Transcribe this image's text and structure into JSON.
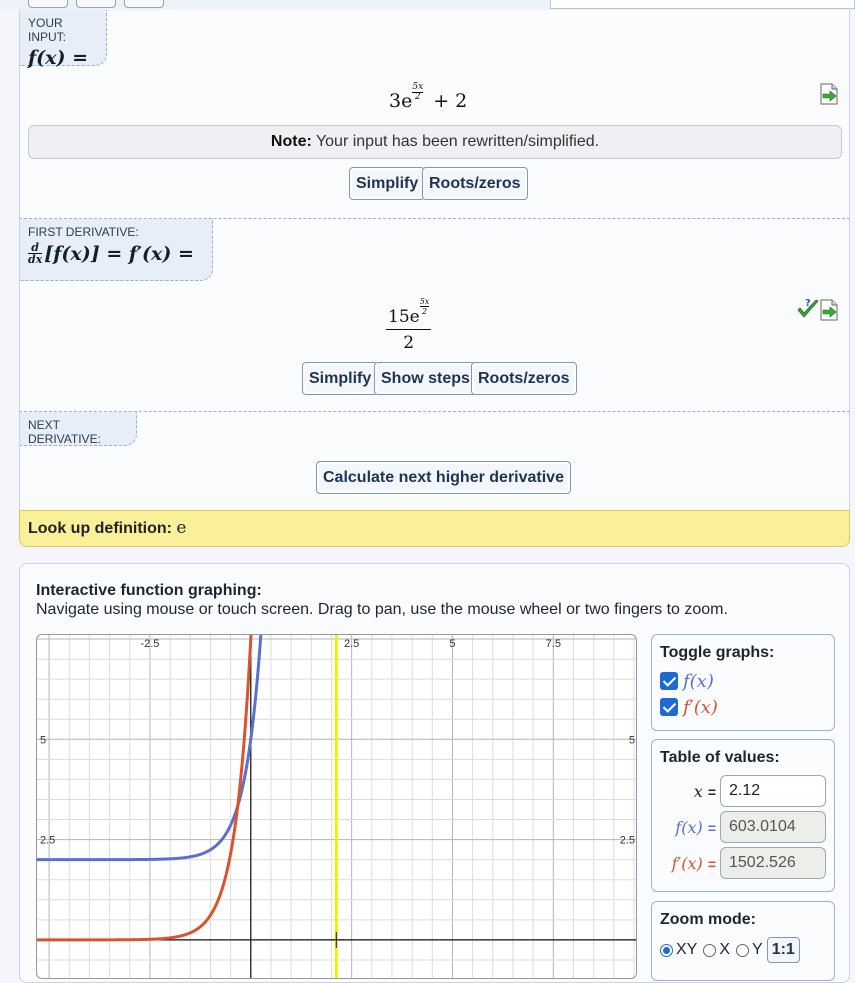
{
  "input_section": {
    "tag_label": "YOUR INPUT:",
    "tag_math": "f(x) =",
    "expr_coef": "3e",
    "expr_exp_num": "5x",
    "expr_exp_den": "2",
    "expr_tail": "+ 2",
    "note_bold": "Note:",
    "note_text": "Your input has been rewritten/simplified.",
    "btn_simplify": "Simplify",
    "btn_roots": "Roots/zeros"
  },
  "first_derivative": {
    "tag_label": "FIRST DERIVATIVE:",
    "tag_d": "d",
    "tag_dx": "dx",
    "tag_rest": "[f(x)] = f′(x) =",
    "expr_num_coef": "15e",
    "expr_exp_num": "5x",
    "expr_exp_den": "2",
    "expr_den": "2",
    "btn_simplify": "Simplify",
    "btn_steps": "Show steps",
    "btn_roots": "Roots/zeros"
  },
  "next_derivative": {
    "tag_label": "NEXT DERIVATIVE:",
    "btn_next": "Calculate next higher derivative"
  },
  "lookup": {
    "label": "Look up definition:",
    "symbol": "e"
  },
  "graphing": {
    "title": "Interactive function graphing:",
    "subtitle": "Navigate using mouse or touch screen. Drag to pan, use the mouse wheel or two fingers to zoom.",
    "toggle_title": "Toggle graphs:",
    "toggle_f": "f(x)",
    "toggle_fp": "f′(x)",
    "table_title": "Table of values:",
    "x_label": "x",
    "x_value": "2.12",
    "f_label": "f(x)",
    "f_value": "603.0104",
    "fp_label": "f′(x)",
    "fp_value": "1502.526",
    "eq": "=",
    "zoom_title": "Zoom mode:",
    "zoom_xy": "XY",
    "zoom_x": "X",
    "zoom_y": "Y",
    "zoom_ratio": "1:1",
    "colors": {
      "f": "#5a6fd0",
      "fp": "#d9542e",
      "cursor": "#f2f200"
    }
  },
  "chart_data": {
    "type": "line",
    "x_ticks": [
      "-2.5",
      "2.5",
      "5",
      "7.5"
    ],
    "y_ticks": [
      "5",
      "2.5"
    ],
    "xlim": [
      -5.3,
      9.6
    ],
    "ylim": [
      -1,
      7.6
    ],
    "cursor_x": 2.12,
    "series": [
      {
        "name": "f(x)",
        "formula": "3e^(5x/2)+2"
      },
      {
        "name": "f′(x)",
        "formula": "15e^(5x/2)/2"
      }
    ]
  }
}
